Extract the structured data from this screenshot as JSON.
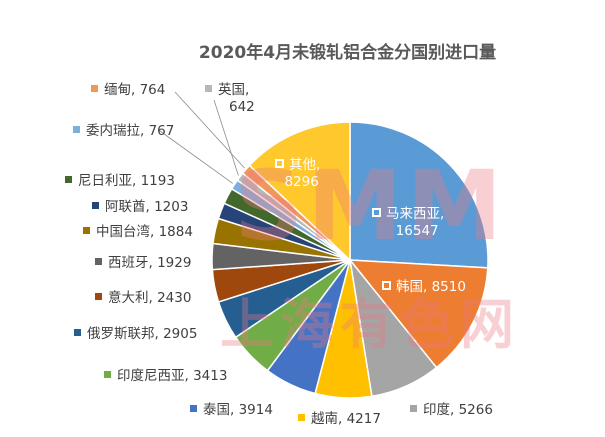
{
  "chart_data": {
    "type": "pie",
    "title": "2020年4月未锻轧铝合金分国别进口量",
    "slices": [
      {
        "name": "马来西亚",
        "value": 16547,
        "color": "#5b9bd5"
      },
      {
        "name": "韩国",
        "value": 8510,
        "color": "#ed7d31"
      },
      {
        "name": "印度",
        "value": 5266,
        "color": "#a5a5a5"
      },
      {
        "name": "越南",
        "value": 4217,
        "color": "#ffc000"
      },
      {
        "name": "泰国",
        "value": 3914,
        "color": "#4472c4"
      },
      {
        "name": "印度尼西亚",
        "value": 3413,
        "color": "#70ad47"
      },
      {
        "name": "俄罗斯联邦",
        "value": 2905,
        "color": "#255e91"
      },
      {
        "name": "意大利",
        "value": 2430,
        "color": "#9e480e"
      },
      {
        "name": "西班牙",
        "value": 1929,
        "color": "#636363"
      },
      {
        "name": "中国台湾",
        "value": 1884,
        "color": "#997300"
      },
      {
        "name": "阿联酋",
        "value": 1203,
        "color": "#264478"
      },
      {
        "name": "尼日利亚",
        "value": 1193,
        "color": "#43682b"
      },
      {
        "name": "委内瑞拉",
        "value": 767,
        "color": "#7cafdd"
      },
      {
        "name": "英国",
        "value": 642,
        "color": "#b7b7b7"
      },
      {
        "name": "缅甸",
        "value": 764,
        "color": "#f1975a"
      },
      {
        "name": "其他",
        "value": 8296,
        "color": "#ffc82c"
      }
    ],
    "labels": {
      "malaysia": "马来西亚,",
      "malaysia_value": "16547",
      "korea": "韩国, 8510",
      "india": "印度, 5266",
      "vietnam": "越南, 4217",
      "thailand": "泰国, 3914",
      "indonesia": "印度尼西亚, 3413",
      "russia": "俄罗斯联邦, 2905",
      "italy": "意大利, 2430",
      "spain": "西班牙, 1929",
      "taiwan": "中国台湾, 1884",
      "uae": "阿联酋, 1203",
      "nigeria": "尼日利亚, 1193",
      "venezuela": "委内瑞拉, 767",
      "uk": "英国,",
      "uk_value": "642",
      "myanmar": "缅甸, 764",
      "other": "其他,",
      "other_value": "8296"
    }
  },
  "watermark": {
    "top": "SMM",
    "bottom": "上海有色网"
  }
}
